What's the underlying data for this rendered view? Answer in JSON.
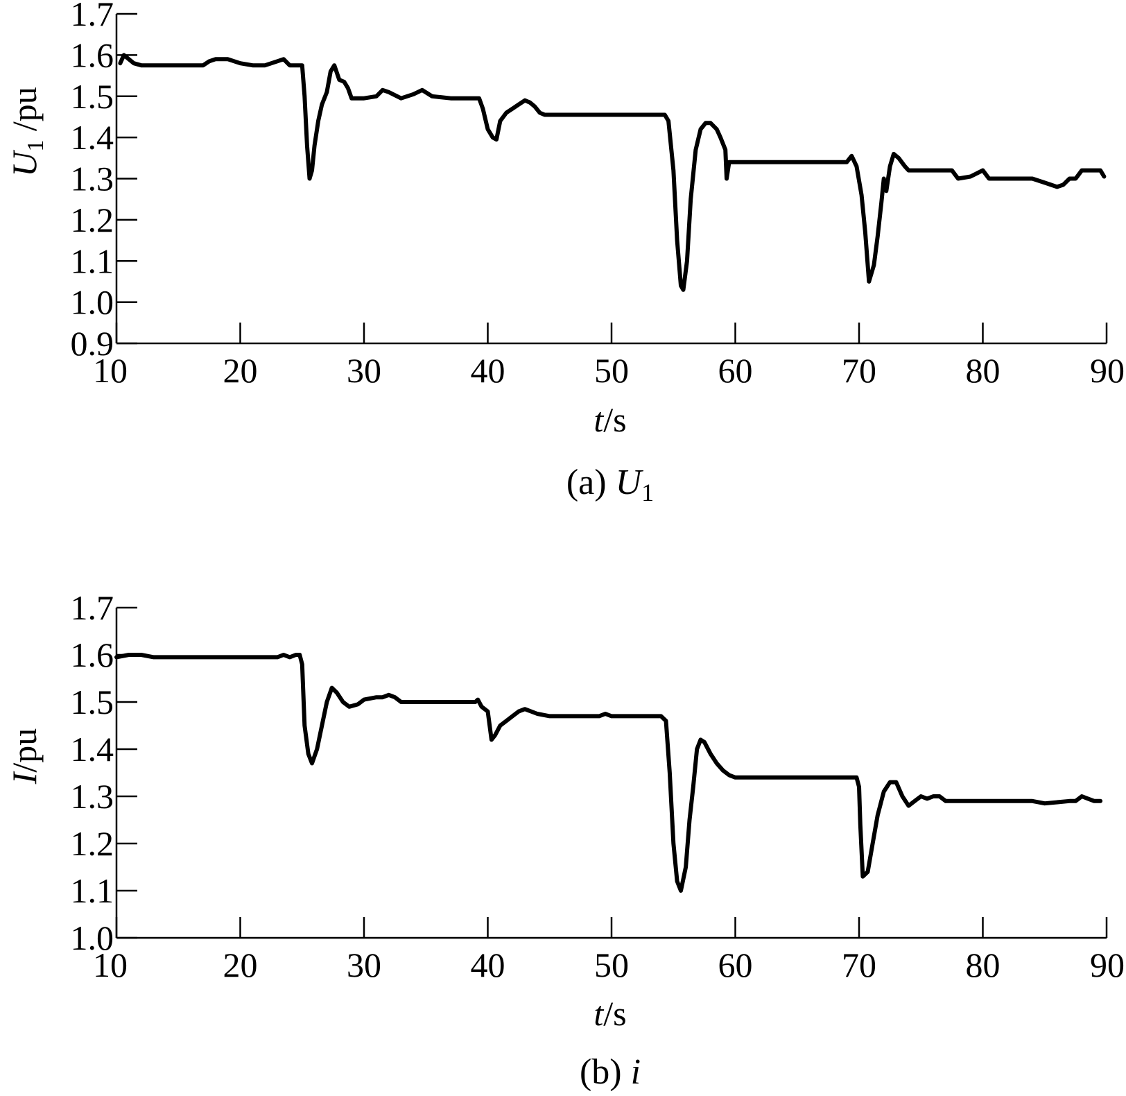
{
  "chart_data": [
    {
      "type": "line",
      "caption": {
        "prefix": "(a) ",
        "symbol": "U",
        "subscript": "1"
      },
      "xlabel": {
        "symbol": "t",
        "unit": "/s"
      },
      "ylabel": {
        "symbol": "U",
        "subscript": "1",
        "unit": " /pu"
      },
      "xlim": [
        10,
        90
      ],
      "ylim": [
        0.9,
        1.7
      ],
      "xticks": [
        10,
        20,
        30,
        40,
        50,
        60,
        70,
        80,
        90
      ],
      "xtick_labels": [
        "10",
        "20",
        "30",
        "40",
        "50",
        "60",
        "70",
        "80",
        "90"
      ],
      "yticks": [
        0.9,
        1.0,
        1.1,
        1.2,
        1.3,
        1.4,
        1.5,
        1.6,
        1.7
      ],
      "ytick_labels": [
        "0.9",
        "1.0",
        "1.1",
        "1.2",
        "1.3",
        "1.4",
        "1.5",
        "1.6",
        "1.7"
      ],
      "grid": false,
      "series": [
        {
          "x": [
            10.3,
            10.6,
            11.0,
            11.4,
            12.0,
            14.0,
            17.0,
            17.5,
            18.0,
            19.0,
            20.0,
            21.0,
            22.0,
            23.0,
            23.5,
            24.0,
            25.0,
            25.2,
            25.4,
            25.6,
            25.8,
            26.0,
            26.3,
            26.6,
            27.0,
            27.3,
            27.6,
            28.0,
            28.4,
            28.7,
            29.0,
            30.0,
            31.0,
            31.5,
            32.0,
            33.0,
            34.0,
            34.7,
            35.5,
            37.0,
            39.3,
            39.6,
            40.0,
            40.4,
            40.7,
            41.0,
            41.5,
            42.0,
            42.5,
            43.0,
            43.4,
            43.8,
            44.2,
            44.6,
            47.0,
            50.0,
            53.0,
            54.3,
            54.6,
            55.0,
            55.3,
            55.6,
            55.8,
            56.1,
            56.4,
            56.8,
            57.2,
            57.6,
            58.0,
            58.5,
            58.8,
            59.2,
            59.3,
            59.5,
            59.7,
            60.0,
            65.0,
            69.0,
            69.4,
            69.8,
            70.2,
            70.5,
            70.8,
            71.2,
            71.5,
            71.8,
            72.0,
            72.2,
            72.5,
            72.8,
            73.2,
            73.7,
            74.0,
            76.0,
            77.5,
            78.0,
            79.0,
            80.0,
            80.5,
            81.0,
            84.0,
            85.0,
            85.5,
            86.0,
            86.5,
            87.0,
            87.5,
            88.0,
            89.0,
            89.5,
            89.8
          ],
          "y": [
            1.58,
            1.6,
            1.59,
            1.58,
            1.575,
            1.575,
            1.575,
            1.585,
            1.59,
            1.59,
            1.58,
            1.575,
            1.575,
            1.585,
            1.59,
            1.575,
            1.575,
            1.5,
            1.38,
            1.3,
            1.32,
            1.38,
            1.44,
            1.48,
            1.51,
            1.56,
            1.575,
            1.54,
            1.535,
            1.52,
            1.495,
            1.495,
            1.5,
            1.515,
            1.51,
            1.495,
            1.505,
            1.515,
            1.5,
            1.495,
            1.495,
            1.47,
            1.42,
            1.4,
            1.395,
            1.44,
            1.46,
            1.47,
            1.48,
            1.49,
            1.485,
            1.475,
            1.46,
            1.455,
            1.455,
            1.455,
            1.455,
            1.455,
            1.44,
            1.32,
            1.15,
            1.04,
            1.03,
            1.1,
            1.25,
            1.37,
            1.42,
            1.435,
            1.435,
            1.42,
            1.4,
            1.37,
            1.3,
            1.34,
            1.34,
            1.34,
            1.34,
            1.34,
            1.355,
            1.33,
            1.26,
            1.17,
            1.05,
            1.09,
            1.16,
            1.24,
            1.3,
            1.27,
            1.33,
            1.36,
            1.35,
            1.33,
            1.32,
            1.32,
            1.32,
            1.3,
            1.305,
            1.32,
            1.3,
            1.3,
            1.3,
            1.29,
            1.285,
            1.28,
            1.285,
            1.3,
            1.3,
            1.32,
            1.32,
            1.32,
            1.305
          ]
        }
      ]
    },
    {
      "type": "line",
      "caption": {
        "prefix": "(b) ",
        "symbol": "i",
        "subscript": ""
      },
      "xlabel": {
        "symbol": "t",
        "unit": "/s"
      },
      "ylabel": {
        "symbol": "I",
        "subscript": "",
        "unit": "/pu"
      },
      "xlim": [
        10,
        90
      ],
      "ylim": [
        1.0,
        1.7
      ],
      "xticks": [
        10,
        20,
        30,
        40,
        50,
        60,
        70,
        80,
        90
      ],
      "xtick_labels": [
        "10",
        "20",
        "30",
        "40",
        "50",
        "60",
        "70",
        "80",
        "90"
      ],
      "yticks": [
        1.0,
        1.1,
        1.2,
        1.3,
        1.4,
        1.5,
        1.6,
        1.7
      ],
      "ytick_labels": [
        "1.0",
        "1.1",
        "1.2",
        "1.3",
        "1.4",
        "1.5",
        "1.6",
        "1.7"
      ],
      "grid": false,
      "series": [
        {
          "x": [
            10.0,
            11.0,
            12.0,
            13.0,
            15.0,
            20.0,
            23.0,
            23.5,
            24.0,
            24.5,
            24.8,
            25.0,
            25.2,
            25.5,
            25.8,
            26.2,
            26.6,
            27.0,
            27.4,
            27.8,
            28.3,
            28.8,
            29.5,
            30.0,
            31.0,
            31.5,
            32.0,
            32.5,
            33.0,
            35.0,
            38.0,
            39.0,
            39.2,
            39.5,
            40.0,
            40.3,
            40.6,
            41.0,
            41.5,
            42.0,
            42.5,
            43.0,
            44.0,
            45.0,
            48.0,
            49.0,
            49.5,
            50.0,
            52.0,
            54.0,
            54.4,
            54.7,
            55.0,
            55.3,
            55.6,
            56.0,
            56.3,
            56.6,
            56.9,
            57.2,
            57.5,
            58.0,
            58.5,
            59.0,
            59.5,
            60.0,
            65.0,
            69.8,
            70.0,
            70.1,
            70.3,
            70.7,
            71.1,
            71.5,
            72.0,
            72.5,
            73.0,
            73.5,
            74.0,
            74.5,
            75.0,
            75.5,
            76.0,
            76.5,
            77.0,
            78.0,
            80.0,
            84.0,
            85.0,
            87.0,
            87.5,
            88.0,
            88.5,
            89.0,
            89.5
          ],
          "y": [
            1.595,
            1.6,
            1.6,
            1.595,
            1.595,
            1.595,
            1.595,
            1.6,
            1.595,
            1.6,
            1.6,
            1.58,
            1.45,
            1.39,
            1.37,
            1.4,
            1.45,
            1.5,
            1.53,
            1.52,
            1.5,
            1.49,
            1.495,
            1.505,
            1.51,
            1.51,
            1.515,
            1.51,
            1.5,
            1.5,
            1.5,
            1.5,
            1.505,
            1.49,
            1.48,
            1.42,
            1.43,
            1.45,
            1.46,
            1.47,
            1.48,
            1.485,
            1.475,
            1.47,
            1.47,
            1.47,
            1.475,
            1.47,
            1.47,
            1.47,
            1.46,
            1.35,
            1.2,
            1.12,
            1.1,
            1.15,
            1.25,
            1.32,
            1.4,
            1.42,
            1.415,
            1.39,
            1.37,
            1.355,
            1.345,
            1.34,
            1.34,
            1.34,
            1.32,
            1.24,
            1.13,
            1.14,
            1.2,
            1.26,
            1.31,
            1.33,
            1.33,
            1.3,
            1.28,
            1.29,
            1.3,
            1.295,
            1.3,
            1.3,
            1.29,
            1.29,
            1.29,
            1.29,
            1.285,
            1.29,
            1.29,
            1.3,
            1.295,
            1.29,
            1.29
          ]
        }
      ]
    }
  ]
}
